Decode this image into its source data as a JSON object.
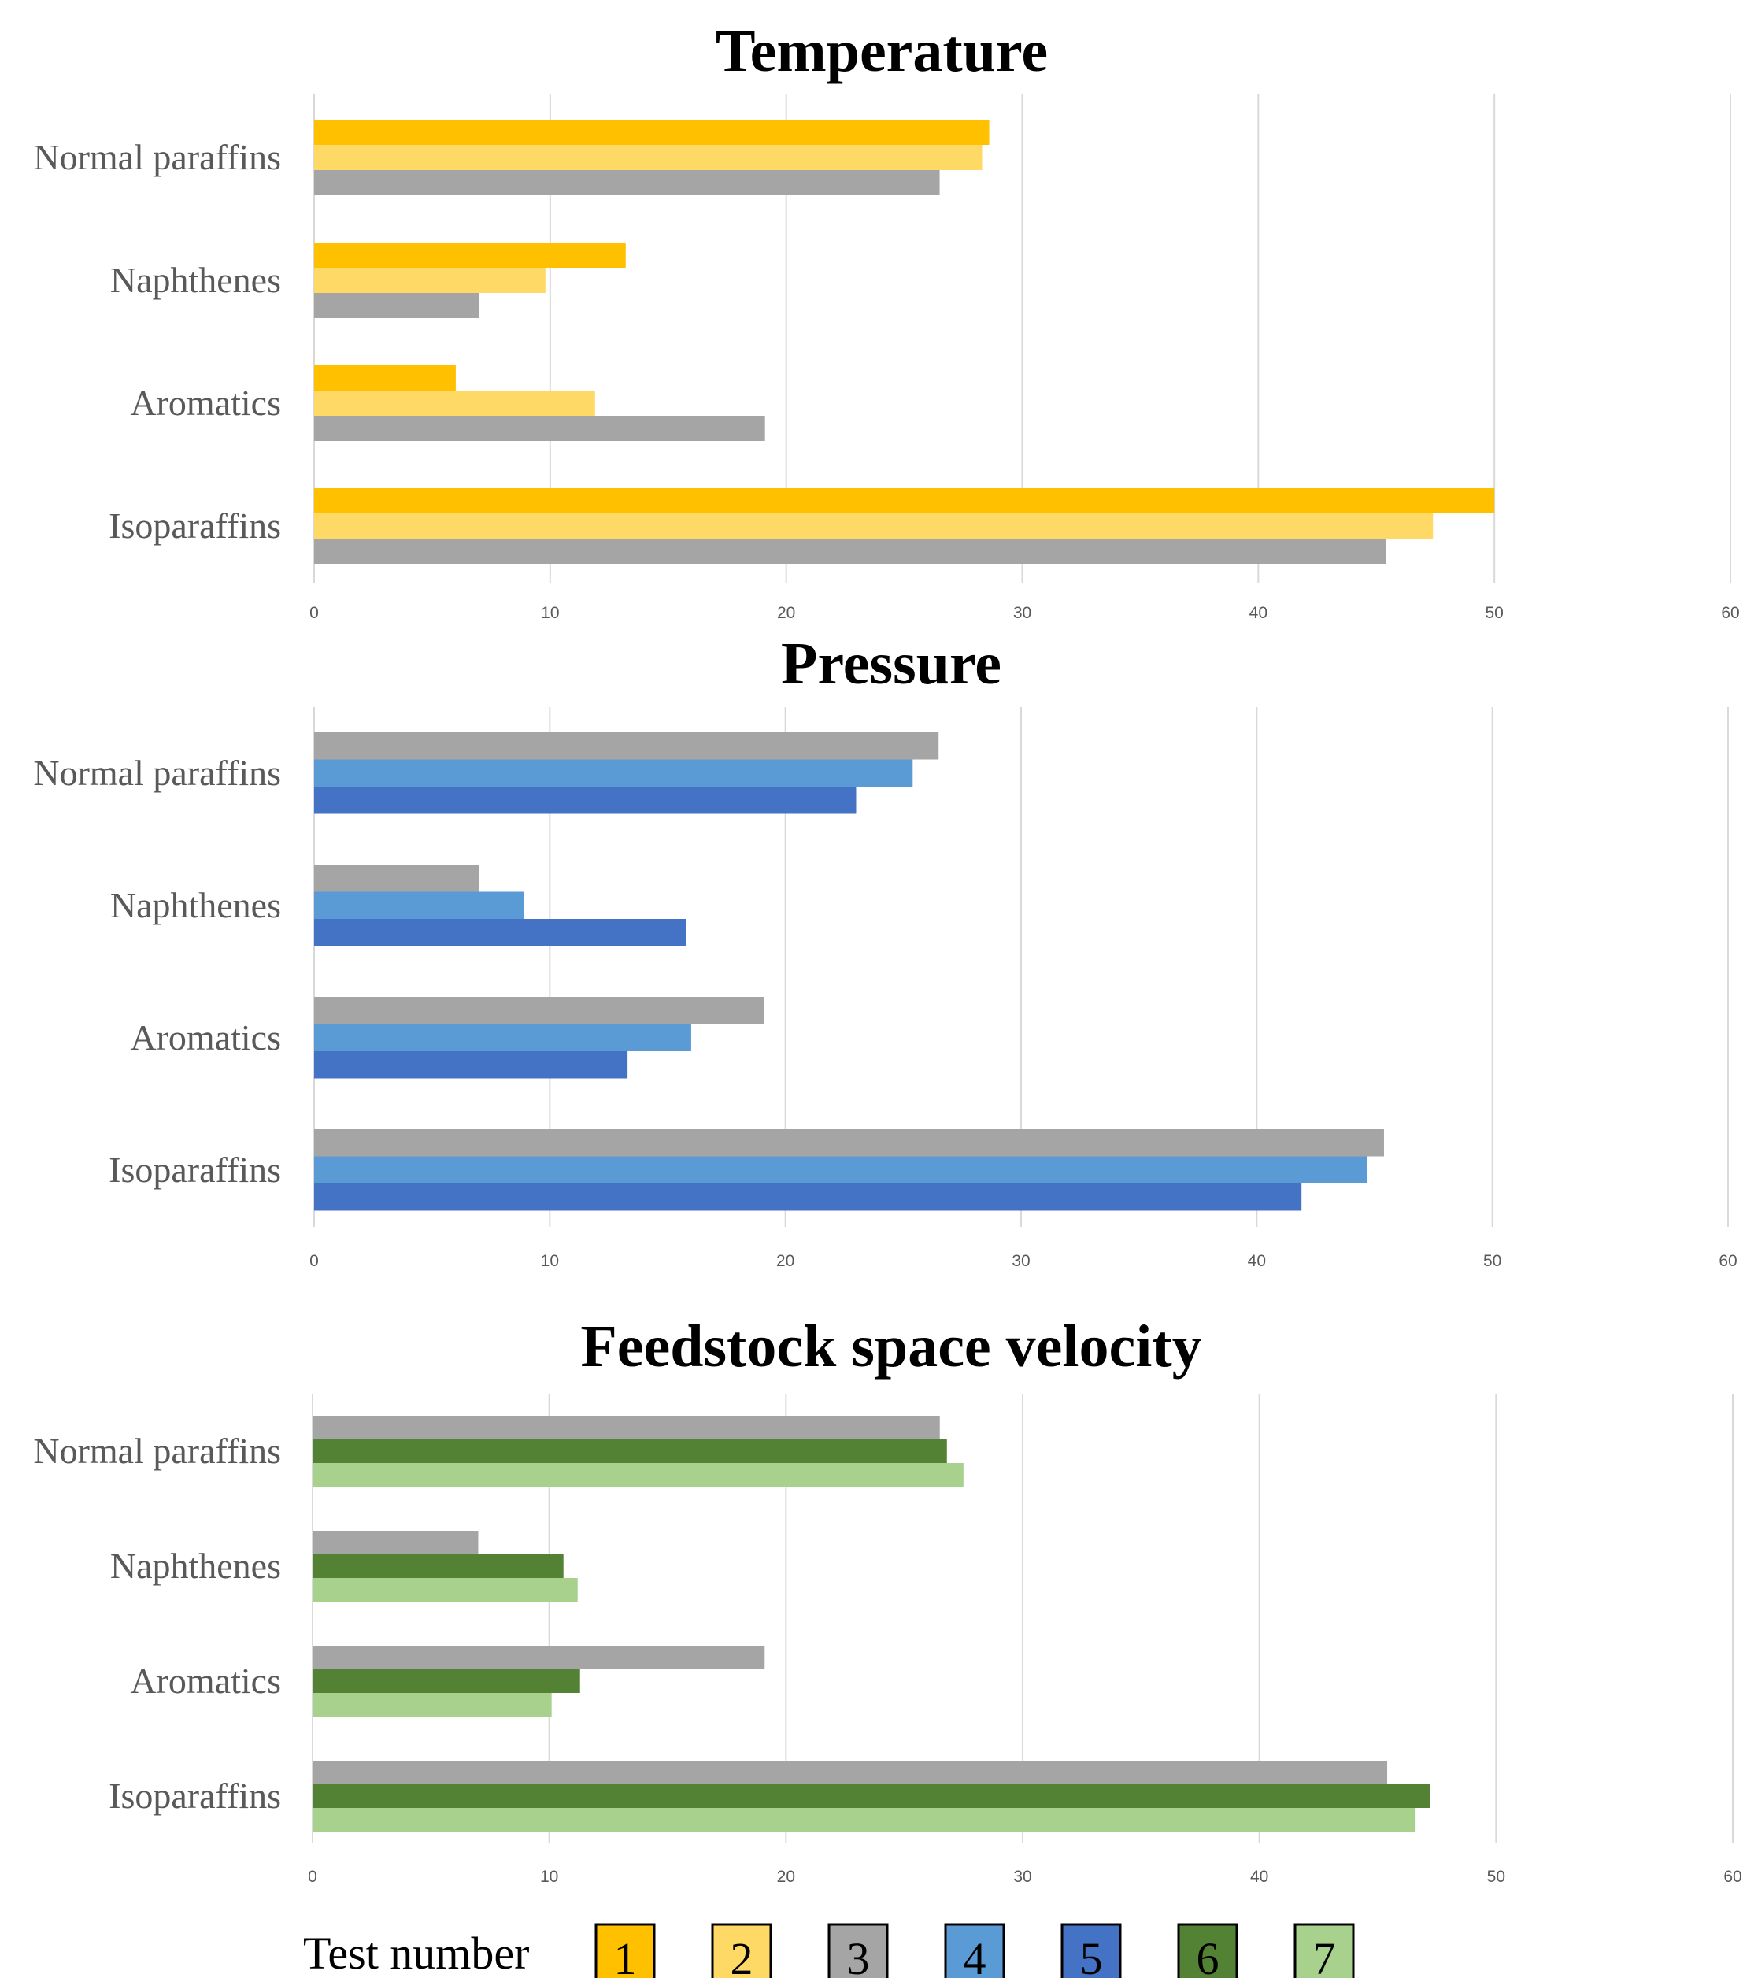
{
  "chart_data": [
    {
      "type": "bar",
      "orientation": "horizontal",
      "title": "Temperature",
      "categories": [
        "Normal paraffins",
        "Naphthenes",
        "Aromatics",
        "Isoparaffins"
      ],
      "xlim": [
        0,
        60
      ],
      "xticks": [
        "0",
        "10",
        "20",
        "30",
        "40",
        "50",
        "60"
      ],
      "grid": true,
      "series": [
        {
          "name": "1",
          "color": "#FFC000",
          "values": [
            28.6,
            13.2,
            6.0,
            50.0
          ]
        },
        {
          "name": "2",
          "color": "#FFD966",
          "values": [
            28.3,
            9.8,
            11.9,
            47.4
          ]
        },
        {
          "name": "3",
          "color": "#A5A5A5",
          "values": [
            26.5,
            7.0,
            19.1,
            45.4
          ]
        }
      ]
    },
    {
      "type": "bar",
      "orientation": "horizontal",
      "title": "Pressure",
      "categories": [
        "Normal paraffins",
        "Naphthenes",
        "Aromatics",
        "Isoparaffins"
      ],
      "xlim": [
        0,
        60
      ],
      "xticks": [
        "0",
        "10",
        "20",
        "30",
        "40",
        "50",
        "60"
      ],
      "grid": true,
      "series": [
        {
          "name": "3",
          "color": "#A5A5A5",
          "values": [
            26.5,
            7.0,
            19.1,
            45.4
          ]
        },
        {
          "name": "4",
          "color": "#5B9BD5",
          "values": [
            25.4,
            8.9,
            16.0,
            44.7
          ]
        },
        {
          "name": "5",
          "color": "#4472C4",
          "values": [
            23.0,
            15.8,
            13.3,
            41.9
          ]
        }
      ]
    },
    {
      "type": "bar",
      "orientation": "horizontal",
      "title": "Feedstock space velocity",
      "categories": [
        "Normal paraffins",
        "Naphthenes",
        "Aromatics",
        "Isoparaffins"
      ],
      "xlim": [
        0,
        60
      ],
      "xticks": [
        "0",
        "10",
        "20",
        "30",
        "40",
        "50",
        "60"
      ],
      "grid": true,
      "series": [
        {
          "name": "3",
          "color": "#A5A5A5",
          "values": [
            26.5,
            7.0,
            19.1,
            45.4
          ]
        },
        {
          "name": "6",
          "color": "#548235",
          "values": [
            26.8,
            10.6,
            11.3,
            47.2
          ]
        },
        {
          "name": "7",
          "color": "#A9D18E",
          "values": [
            27.5,
            11.2,
            10.1,
            46.6
          ]
        }
      ]
    }
  ],
  "legend": {
    "title": "Test number",
    "placement": "bottom",
    "items": [
      {
        "label": "1",
        "color": "#FFC000"
      },
      {
        "label": "2",
        "color": "#FFD966"
      },
      {
        "label": "3",
        "color": "#A5A5A5"
      },
      {
        "label": "4",
        "color": "#5B9BD5"
      },
      {
        "label": "5",
        "color": "#4472C4"
      },
      {
        "label": "6",
        "color": "#548235"
      },
      {
        "label": "7",
        "color": "#A9D18E"
      }
    ]
  }
}
